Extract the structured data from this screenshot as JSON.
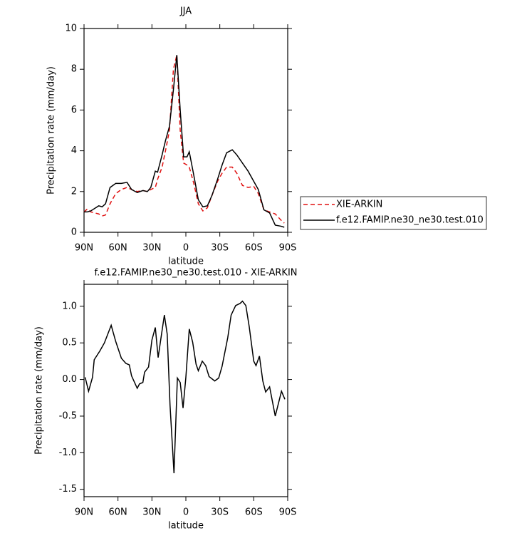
{
  "chart_data": [
    {
      "type": "line",
      "title": "JJA",
      "xlabel": "latitude",
      "ylabel": "Precipitation rate (mm/day)",
      "x": [
        90,
        87,
        84,
        77,
        74,
        71,
        67,
        62,
        57,
        52,
        48,
        43,
        38,
        34,
        31,
        27,
        25,
        21,
        18,
        14.5,
        11,
        8,
        5,
        2,
        -1,
        -3,
        -7,
        -11,
        -15,
        -19,
        -23,
        -28,
        -32,
        -36,
        -41,
        -45,
        -50,
        -55,
        -60,
        -64,
        -69,
        -74,
        -79,
        -84,
        -87
      ],
      "xlim": [
        90,
        -90
      ],
      "xticks": [
        {
          "value": 90,
          "label": "90N"
        },
        {
          "value": 60,
          "label": "60N"
        },
        {
          "value": 30,
          "label": "30N"
        },
        0,
        {
          "value": -30,
          "label": "30S"
        },
        {
          "value": -60,
          "label": "60S"
        },
        {
          "value": -90,
          "label": "90S"
        }
      ],
      "ylim": [
        0,
        10
      ],
      "yticks": [
        0,
        2,
        4,
        6,
        8,
        10
      ],
      "series": [
        {
          "name": "XIE-ARKIN",
          "color": "#e01010",
          "dashed": true,
          "values": [
            1.0,
            1.15,
            1.0,
            0.9,
            0.8,
            0.85,
            1.4,
            1.9,
            2.1,
            2.2,
            2.1,
            2.0,
            2.05,
            2.0,
            2.1,
            2.2,
            2.6,
            3.2,
            4.0,
            5.0,
            8.0,
            8.7,
            5.0,
            3.4,
            3.3,
            3.2,
            2.4,
            1.4,
            1.05,
            1.2,
            1.8,
            2.5,
            2.9,
            3.2,
            3.2,
            2.9,
            2.3,
            2.2,
            2.25,
            1.9,
            1.1,
            1.0,
            0.9,
            0.6,
            0.45
          ]
        },
        {
          "name": "f.e12.FAMIP.ne30_ne30.test.010",
          "color": "#000000",
          "dashed": false,
          "values": [
            1.0,
            1.0,
            1.05,
            1.3,
            1.25,
            1.4,
            2.2,
            2.4,
            2.4,
            2.45,
            2.1,
            1.95,
            2.05,
            2.0,
            2.2,
            3.0,
            2.95,
            3.8,
            4.5,
            5.2,
            7.0,
            8.7,
            6.0,
            3.7,
            3.7,
            3.95,
            2.8,
            1.6,
            1.25,
            1.3,
            1.8,
            2.6,
            3.3,
            3.9,
            4.05,
            3.8,
            3.4,
            3.0,
            2.5,
            2.1,
            1.1,
            0.95,
            0.35,
            0.3,
            0.25
          ]
        }
      ]
    },
    {
      "type": "line",
      "title": "f.e12.FAMIP.ne30_ne30.test.010 - XIE-ARKIN",
      "xlabel": "latitude",
      "ylabel": "Precipitation rate (mm/day)",
      "x": [
        89,
        86,
        82.5,
        81,
        76,
        72,
        66,
        62,
        57,
        53,
        50,
        48,
        43,
        41,
        38,
        36.5,
        33,
        30,
        27,
        24.5,
        21.5,
        19,
        16.5,
        14,
        10.5,
        7.5,
        5,
        2.5,
        0,
        -3,
        -6,
        -9,
        -11,
        -14.5,
        -17.5,
        -20.5,
        -25.5,
        -29,
        -32,
        -37,
        -40,
        -44,
        -48,
        -50,
        -53,
        -56,
        -60,
        -62,
        -65,
        -68,
        -70.5,
        -74,
        -79,
        -84.5,
        -87.5
      ],
      "xlim": [
        90,
        -90
      ],
      "xticks": [
        {
          "value": 90,
          "label": "90N"
        },
        {
          "value": 60,
          "label": "60N"
        },
        {
          "value": 30,
          "label": "30N"
        },
        0,
        {
          "value": -30,
          "label": "30S"
        },
        {
          "value": -60,
          "label": "60S"
        },
        {
          "value": -90,
          "label": "90S"
        }
      ],
      "ylim": [
        -1.6,
        1.3
      ],
      "yticks": [
        {
          "value": -1.5,
          "label": "-1.5"
        },
        {
          "value": -1,
          "label": "-1.0"
        },
        {
          "value": -0.5,
          "label": "-0.5"
        },
        {
          "value": 0,
          "label": "0.0"
        },
        {
          "value": 0.5,
          "label": "0.5"
        },
        {
          "value": 1,
          "label": "1.0"
        }
      ],
      "series": [
        {
          "color": "#000000",
          "dashed": false,
          "values": [
            0.03,
            -0.16,
            0.03,
            0.27,
            0.39,
            0.5,
            0.74,
            0.52,
            0.29,
            0.22,
            0.2,
            0.05,
            -0.12,
            -0.06,
            -0.04,
            0.1,
            0.17,
            0.54,
            0.71,
            0.3,
            0.62,
            0.88,
            0.62,
            -0.35,
            -1.28,
            0.02,
            -0.04,
            -0.39,
            0.03,
            0.69,
            0.51,
            0.21,
            0.12,
            0.25,
            0.19,
            0.04,
            -0.02,
            0.02,
            0.18,
            0.57,
            0.88,
            1.01,
            1.04,
            1.07,
            1.01,
            0.72,
            0.25,
            0.19,
            0.32,
            -0.02,
            -0.17,
            -0.1,
            -0.5,
            -0.16,
            -0.27
          ]
        }
      ]
    }
  ]
}
